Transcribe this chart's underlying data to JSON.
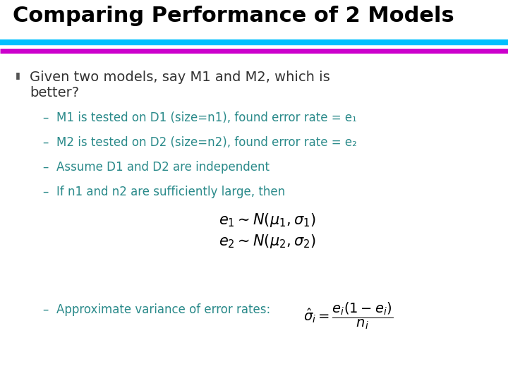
{
  "title": "Comparing Performance of 2 Models",
  "title_color": "#000000",
  "title_fontsize": 22,
  "title_bold": true,
  "bg_color": "#ffffff",
  "line1_color": "#00BFFF",
  "line2_color": "#CC00CC",
  "bullet_color": "#555555",
  "text_color": "#333333",
  "sub_color": "#2a8a8a",
  "sub_items": [
    "M1 is tested on D1 (size=n1), found error rate = e₁",
    "M2 is tested on D2 (size=n2), found error rate = e₂",
    "Assume D1 and D2 are independent",
    "If n1 and n2 are sufficiently large, then"
  ],
  "formula1": "$e_1 \\sim N(\\mu_1, \\sigma_1)$",
  "formula2": "$e_2 \\sim N(\\mu_2, \\sigma_2)$",
  "last_sub_text": "Approximate variance of error rates: ",
  "variance_formula": "$\\hat{\\sigma}_i = \\dfrac{e_i(1-e_i)}{n_i}$"
}
